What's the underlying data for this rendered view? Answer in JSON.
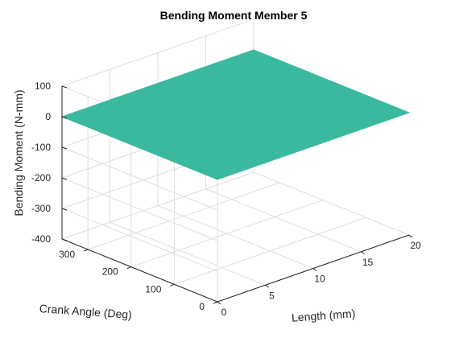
{
  "chart_data": {
    "type": "surface",
    "title": "Bending Moment Member 5",
    "xlabel": "Length (mm)",
    "ylabel": "Crank Angle (Deg)",
    "zlabel": "Bending Moment (N-mm)",
    "xlim": [
      0,
      20
    ],
    "ylim": [
      0,
      360
    ],
    "zlim": [
      -400,
      100
    ],
    "xticks": [
      0,
      5,
      10,
      15,
      20
    ],
    "yticks": [
      0,
      100,
      200,
      300
    ],
    "zticks": [
      100,
      0,
      -100,
      -200,
      -300,
      -400
    ],
    "grid": true,
    "surface": {
      "color": "#3bb99f",
      "x": [
        0,
        20
      ],
      "y": [
        0,
        360
      ],
      "z": [
        [
          0,
          0
        ],
        [
          0,
          0
        ]
      ]
    }
  }
}
